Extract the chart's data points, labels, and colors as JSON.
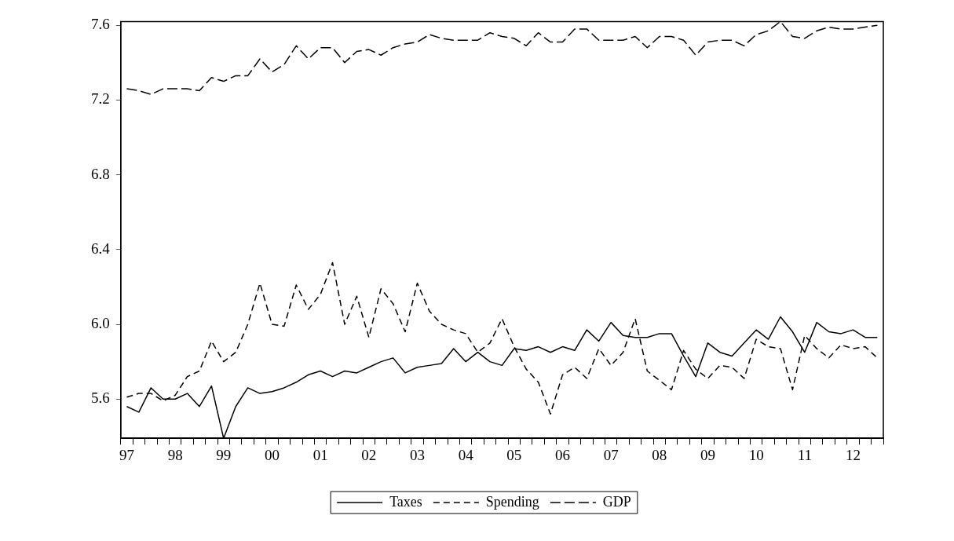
{
  "chart_data": {
    "type": "line",
    "categories": [
      "97",
      null,
      null,
      null,
      "98",
      null,
      null,
      null,
      "99",
      null,
      null,
      null,
      "00",
      null,
      null,
      null,
      "01",
      null,
      null,
      null,
      "02",
      null,
      null,
      null,
      "03",
      null,
      null,
      null,
      "04",
      null,
      null,
      null,
      "05",
      null,
      null,
      null,
      "06",
      null,
      null,
      null,
      "07",
      null,
      null,
      null,
      "08",
      null,
      null,
      null,
      "09",
      null,
      null,
      null,
      "10",
      null,
      null,
      null,
      "11",
      null,
      null,
      null,
      "12",
      null,
      null
    ],
    "series": [
      {
        "name": "Taxes",
        "color": "#000000",
        "line_style": "solid",
        "values": [
          5.56,
          5.53,
          5.66,
          5.6,
          5.6,
          5.63,
          5.56,
          5.67,
          5.39,
          5.56,
          5.66,
          5.63,
          5.64,
          5.66,
          5.69,
          5.73,
          5.75,
          5.72,
          5.75,
          5.74,
          5.77,
          5.8,
          5.82,
          5.74,
          5.77,
          5.78,
          5.79,
          5.87,
          5.8,
          5.85,
          5.8,
          5.78,
          5.87,
          5.86,
          5.88,
          5.85,
          5.88,
          5.86,
          5.97,
          5.91,
          6.01,
          5.94,
          5.93,
          5.93,
          5.95,
          5.95,
          5.83,
          5.72,
          5.9,
          5.85,
          5.83,
          5.9,
          5.97,
          5.92,
          6.04,
          5.96,
          5.85,
          6.01,
          5.96,
          5.95,
          5.97,
          5.93,
          5.93
        ]
      },
      {
        "name": "Spending",
        "color": "#000000",
        "line_style": "dashed",
        "values": [
          5.61,
          5.63,
          5.63,
          5.59,
          5.62,
          5.72,
          5.75,
          5.91,
          5.8,
          5.85,
          6.0,
          6.22,
          6.0,
          5.99,
          6.21,
          6.08,
          6.16,
          6.33,
          6.0,
          6.15,
          5.93,
          6.19,
          6.11,
          5.96,
          6.22,
          6.07,
          6.0,
          5.97,
          5.95,
          5.85,
          5.9,
          6.03,
          5.88,
          5.76,
          5.69,
          5.52,
          5.73,
          5.77,
          5.71,
          5.87,
          5.78,
          5.85,
          6.03,
          5.75,
          5.7,
          5.65,
          5.86,
          5.76,
          5.71,
          5.78,
          5.77,
          5.71,
          5.92,
          5.88,
          5.87,
          5.65,
          5.94,
          5.87,
          5.82,
          5.89,
          5.87,
          5.88,
          5.82
        ]
      },
      {
        "name": "GDP",
        "color": "#000000",
        "line_style": "dashed",
        "values": [
          7.26,
          7.25,
          7.23,
          7.26,
          7.26,
          7.26,
          7.25,
          7.32,
          7.3,
          7.33,
          7.33,
          7.42,
          7.35,
          7.39,
          7.49,
          7.42,
          7.48,
          7.48,
          7.4,
          7.46,
          7.47,
          7.44,
          7.48,
          7.5,
          7.51,
          7.55,
          7.53,
          7.52,
          7.52,
          7.52,
          7.56,
          7.54,
          7.53,
          7.49,
          7.56,
          7.51,
          7.51,
          7.58,
          7.58,
          7.52,
          7.52,
          7.52,
          7.54,
          7.48,
          7.54,
          7.54,
          7.52,
          7.44,
          7.51,
          7.52,
          7.52,
          7.49,
          7.55,
          7.57,
          7.62,
          7.54,
          7.53,
          7.57,
          7.59,
          7.58,
          7.58,
          7.59,
          7.6
        ]
      }
    ],
    "ylim": [
      5.39,
      7.62
    ],
    "yticks": [
      5.6,
      {
        "value": 6,
        "label": "6.0"
      },
      6.4,
      6.8,
      7.2,
      7.6
    ],
    "grid": false,
    "legend": "bottom",
    "marker": "none"
  }
}
